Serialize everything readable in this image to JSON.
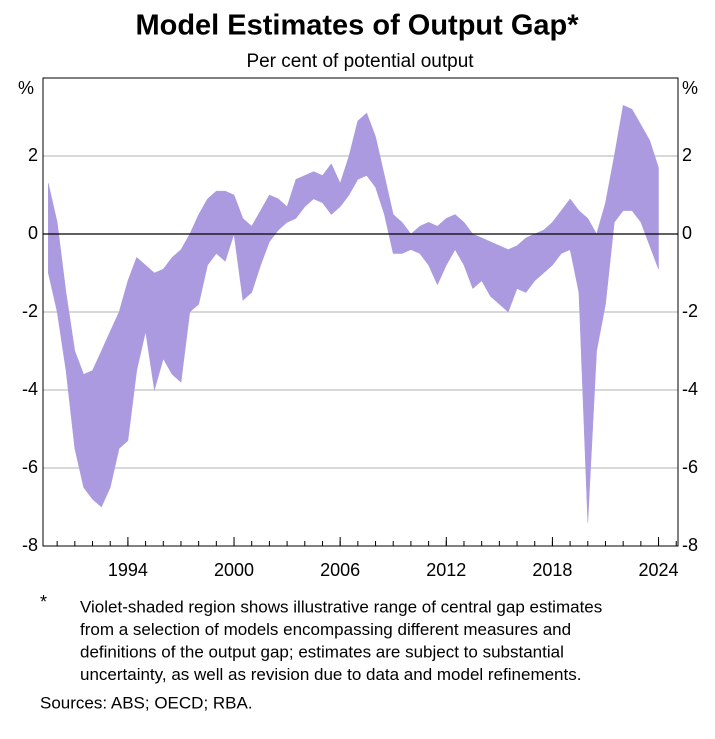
{
  "chart_data": {
    "type": "area",
    "title": "Model Estimates of Output Gap*",
    "subtitle": "Per cent of potential output",
    "y_label": "%",
    "x": [
      1989.5,
      1990,
      1990.5,
      1991,
      1991.5,
      1992,
      1992.5,
      1993,
      1993.5,
      1994,
      1994.5,
      1995,
      1995.5,
      1996,
      1996.5,
      1997,
      1997.5,
      1998,
      1998.5,
      1999,
      1999.5,
      2000,
      2000.5,
      2001,
      2001.5,
      2002,
      2002.5,
      2003,
      2003.5,
      2004,
      2004.5,
      2005,
      2005.5,
      2006,
      2006.5,
      2007,
      2007.5,
      2008,
      2008.5,
      2009,
      2009.5,
      2010,
      2010.5,
      2011,
      2011.5,
      2012,
      2012.5,
      2013,
      2013.5,
      2014,
      2014.5,
      2015,
      2015.5,
      2016,
      2016.5,
      2017,
      2017.5,
      2018,
      2018.5,
      2019,
      2019.5,
      2020,
      2020.5,
      2021,
      2021.5,
      2022,
      2022.5,
      2023,
      2023.5,
      2024
    ],
    "upper": [
      1.3,
      0.3,
      -1.5,
      -3.0,
      -3.6,
      -3.5,
      -3.0,
      -2.5,
      -2.0,
      -1.2,
      -0.6,
      -0.8,
      -1.0,
      -0.9,
      -0.6,
      -0.4,
      0.0,
      0.5,
      0.9,
      1.1,
      1.1,
      1.0,
      0.4,
      0.2,
      0.6,
      1.0,
      0.9,
      0.7,
      1.4,
      1.5,
      1.6,
      1.5,
      1.8,
      1.3,
      2.0,
      2.9,
      3.1,
      2.5,
      1.5,
      0.5,
      0.3,
      0.0,
      0.2,
      0.3,
      0.2,
      0.4,
      0.5,
      0.3,
      0.0,
      -0.1,
      -0.2,
      -0.3,
      -0.4,
      -0.3,
      -0.1,
      0.0,
      0.1,
      0.3,
      0.6,
      0.9,
      0.6,
      0.4,
      0.0,
      0.8,
      2.0,
      3.3,
      3.2,
      2.8,
      2.4,
      1.7
    ],
    "lower": [
      -1.0,
      -2.0,
      -3.5,
      -5.5,
      -6.5,
      -6.8,
      -7.0,
      -6.5,
      -5.5,
      -5.3,
      -3.5,
      -2.5,
      -4.0,
      -3.2,
      -3.6,
      -3.8,
      -2.0,
      -1.8,
      -0.8,
      -0.5,
      -0.7,
      0.0,
      -1.7,
      -1.5,
      -0.8,
      -0.2,
      0.1,
      0.3,
      0.4,
      0.7,
      0.9,
      0.8,
      0.5,
      0.7,
      1.0,
      1.4,
      1.5,
      1.2,
      0.5,
      -0.5,
      -0.5,
      -0.4,
      -0.5,
      -0.8,
      -1.3,
      -0.8,
      -0.4,
      -0.8,
      -1.4,
      -1.2,
      -1.6,
      -1.8,
      -2.0,
      -1.4,
      -1.5,
      -1.2,
      -1.0,
      -0.8,
      -0.5,
      -0.4,
      -1.5,
      -7.4,
      -3.0,
      -1.8,
      0.3,
      0.6,
      0.6,
      0.3,
      -0.3,
      -0.9
    ],
    "color": "#ab9ae0",
    "xlim": [
      1989.2,
      2025.1
    ],
    "xticks": [
      1994,
      2000,
      2006,
      2012,
      2018,
      2024
    ],
    "ylim": [
      -8,
      4
    ],
    "yticks": [
      -8,
      -6,
      -4,
      -2,
      0,
      2
    ],
    "grid": true,
    "note_mark": "*",
    "note": [
      "Violet-shaded region shows illustrative range of central gap estimates",
      "from a selection of models encompassing different measures and",
      "definitions of the output gap; estimates are subject to substantial",
      "uncertainty, as well as revision due to data and model refinements."
    ],
    "sources": "Sources: ABS; OECD; RBA."
  }
}
